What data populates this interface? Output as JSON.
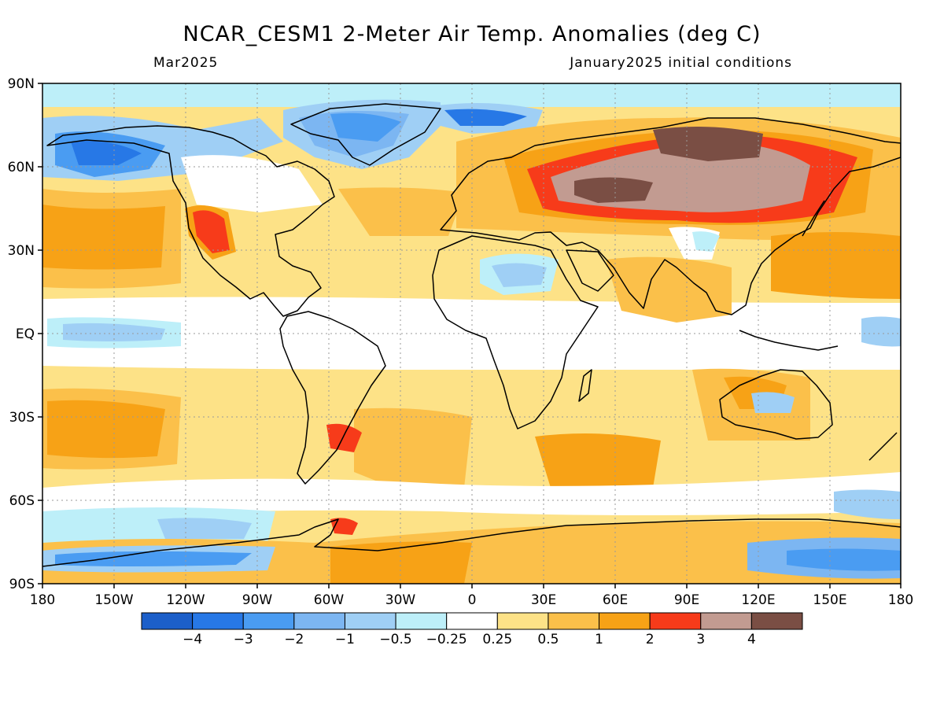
{
  "title": "NCAR_CESM1 2-Meter Air Temp. Anomalies (deg C)",
  "subtitle_left": "Mar2025",
  "subtitle_right": "January2025 initial conditions",
  "lat_labels": [
    "90N",
    "60N",
    "30N",
    "EQ",
    "30S",
    "60S",
    "90S"
  ],
  "lon_labels": [
    "180",
    "150W",
    "120W",
    "90W",
    "60W",
    "30W",
    "0",
    "30E",
    "60E",
    "90E",
    "120E",
    "150E",
    "180"
  ],
  "colorbar": {
    "colors": [
      "#1c5fc9",
      "#2778e6",
      "#4a9cf2",
      "#7cb6f2",
      "#9fcff5",
      "#bdeff9",
      "#ffffff",
      "#fde287",
      "#fbc04a",
      "#f7a216",
      "#f73b1a",
      "#c29b91",
      "#7a4e44"
    ],
    "labels": [
      "−4",
      "−3",
      "−2",
      "−1",
      "−0.5",
      "−0.25",
      "0.25",
      "0.5",
      "1",
      "2",
      "3",
      "4"
    ]
  },
  "colors": {
    "ocean_neutral": "#ffffff",
    "warm_light": "#fde287",
    "warm_mid": "#fbc04a",
    "warm_strong": "#f7a216",
    "hot": "#f73b1a",
    "very_hot": "#c29b91",
    "extreme_hot": "#7a4e44",
    "cool_light": "#bdeff9",
    "cool_mid": "#9fcff5",
    "cold": "#4a9cf2",
    "very_cold": "#2778e6"
  }
}
